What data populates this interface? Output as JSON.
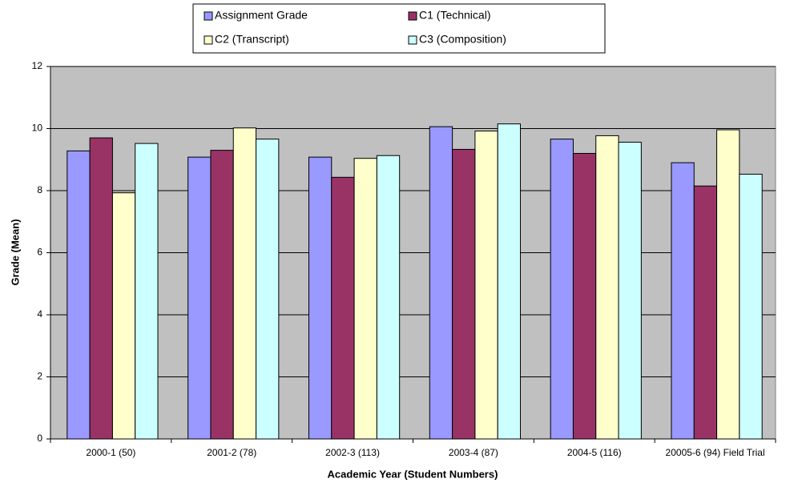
{
  "chart_data": {
    "type": "bar",
    "x_label": "Academic Year (Student Numbers)",
    "y_label": "Grade (Mean)",
    "categories": [
      "2000-1 (50)",
      "2001-2 (78)",
      "2002-3 (113)",
      "2003-4 (87)",
      "2004-5 (116)",
      "20005-6 (94) Field Trial"
    ],
    "series": [
      {
        "name": "Assignment Grade",
        "color": "#9999ff",
        "values": [
          9.28,
          9.08,
          9.08,
          10.06,
          9.66,
          8.9
        ]
      },
      {
        "name": "C1 (Technical)",
        "color": "#993366",
        "values": [
          9.7,
          9.3,
          8.43,
          9.33,
          9.2,
          8.15
        ]
      },
      {
        "name": "C2 (Transcript)",
        "color": "#ffffcc",
        "values": [
          7.93,
          10.02,
          9.04,
          9.92,
          9.77,
          9.96
        ]
      },
      {
        "name": "C3 (Composition)",
        "color": "#ccffff",
        "values": [
          9.52,
          9.66,
          9.13,
          10.15,
          9.56,
          8.53
        ]
      }
    ],
    "ylim": [
      0,
      12
    ],
    "yticks": [
      0,
      2,
      4,
      6,
      8,
      10,
      12
    ],
    "grid": true,
    "legend": "top",
    "plot_background": "#c0c0c0"
  }
}
